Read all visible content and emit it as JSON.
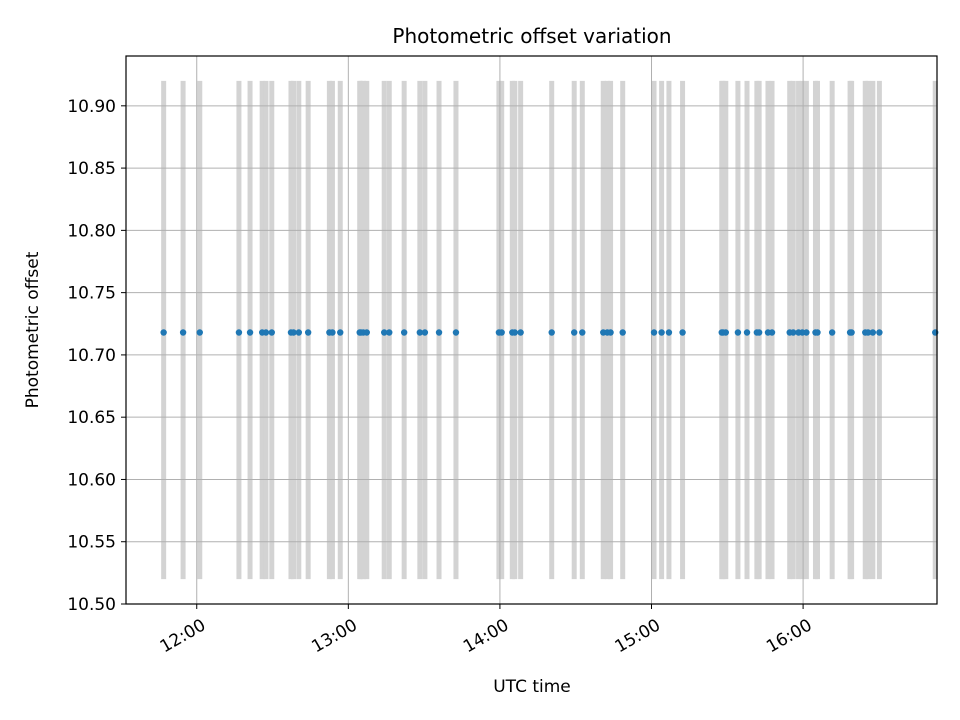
{
  "chart_data": {
    "type": "scatter",
    "title": "Photometric offset variation",
    "xlabel": "UTC time",
    "ylabel": "Photometric offset",
    "grid": true,
    "x_unit": "minutes since 00:00 UTC",
    "xlim": [
      692,
      1013
    ],
    "ylim": [
      10.5,
      10.94
    ],
    "x_ticks": [
      {
        "value": 720,
        "label": "12:00"
      },
      {
        "value": 780,
        "label": "13:00"
      },
      {
        "value": 840,
        "label": "14:00"
      },
      {
        "value": 900,
        "label": "15:00"
      },
      {
        "value": 960,
        "label": "16:00"
      }
    ],
    "y_ticks": [
      {
        "value": 10.5,
        "label": "10.50"
      },
      {
        "value": 10.55,
        "label": "10.55"
      },
      {
        "value": 10.6,
        "label": "10.60"
      },
      {
        "value": 10.65,
        "label": "10.65"
      },
      {
        "value": 10.7,
        "label": "10.70"
      },
      {
        "value": 10.75,
        "label": "10.75"
      },
      {
        "value": 10.8,
        "label": "10.80"
      },
      {
        "value": 10.85,
        "label": "10.85"
      },
      {
        "value": 10.9,
        "label": "10.90"
      }
    ],
    "error_bars": {
      "color": "#d3d3d3",
      "low": 10.52,
      "high": 10.92
    },
    "series": [
      {
        "name": "Photometric offset",
        "color": "#1f77b4",
        "x": [
          706.9,
          714.6,
          721.2,
          736.7,
          741.1,
          745.9,
          747.4,
          749.7,
          757.3,
          758.3,
          760.4,
          764.1,
          772.5,
          773.7,
          776.8,
          784.5,
          785.0,
          785.9,
          787.3,
          794.2,
          796.2,
          802.1,
          808.3,
          810.3,
          815.9,
          822.6,
          839.6,
          840.7,
          844.9,
          845.9,
          848.2,
          860.5,
          869.4,
          872.6,
          880.9,
          882.5,
          883.8,
          888.6,
          901.0,
          904.0,
          906.9,
          912.3,
          927.8,
          928.3,
          929.4,
          934.2,
          937.8,
          941.7,
          942.6,
          946.1,
          947.7,
          954.7,
          956.1,
          958.2,
          959.7,
          961.3,
          964.9,
          965.7,
          971.5,
          978.6,
          979.2,
          984.6,
          985.7,
          987.6,
          990.2,
          1012.3
        ],
        "y": [
          10.718,
          10.718,
          10.718,
          10.718,
          10.718,
          10.718,
          10.718,
          10.718,
          10.718,
          10.718,
          10.718,
          10.718,
          10.718,
          10.718,
          10.718,
          10.718,
          10.718,
          10.718,
          10.718,
          10.718,
          10.718,
          10.718,
          10.718,
          10.718,
          10.718,
          10.718,
          10.718,
          10.718,
          10.718,
          10.718,
          10.718,
          10.718,
          10.718,
          10.718,
          10.718,
          10.718,
          10.718,
          10.718,
          10.718,
          10.718,
          10.718,
          10.718,
          10.718,
          10.718,
          10.718,
          10.718,
          10.718,
          10.718,
          10.718,
          10.718,
          10.718,
          10.718,
          10.718,
          10.718,
          10.718,
          10.718,
          10.718,
          10.718,
          10.718,
          10.718,
          10.718,
          10.718,
          10.718,
          10.718,
          10.718,
          10.718
        ]
      }
    ]
  }
}
